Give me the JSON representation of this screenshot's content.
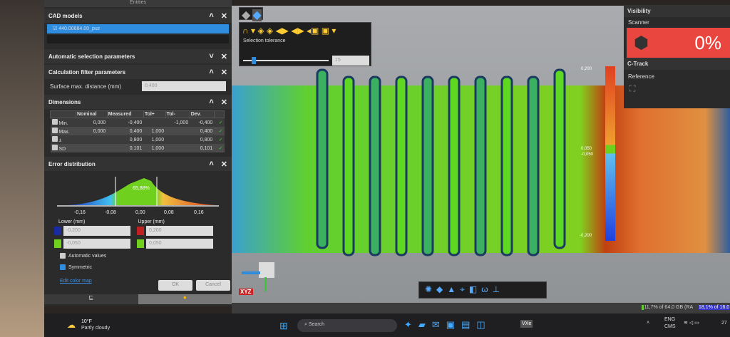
{
  "panel": {
    "tab": "Entities",
    "cad": {
      "title": "CAD models",
      "item": "440.00684.00_puz"
    },
    "auto": {
      "title": "Automatic selection parameters"
    },
    "filter": {
      "title": "Calculation filter parameters",
      "label": "Surface max. distance (mm)",
      "value": "0,400"
    },
    "dims": {
      "title": "Dimensions",
      "headers": [
        "Nominal",
        "Measured",
        "Tol+",
        "Tol-",
        "Dev."
      ],
      "rows": [
        {
          "name": "Min.",
          "nominal": "0,000",
          "measured": "-0,400",
          "tolp": "",
          "tolm": "-1,000",
          "dev": "-0,400"
        },
        {
          "name": "Max.",
          "nominal": "0,000",
          "measured": "0,400",
          "tolp": "1,000",
          "tolm": "",
          "dev": "0,400"
        },
        {
          "name": "±",
          "nominal": "",
          "measured": "0,800",
          "tolp": "1,000",
          "tolm": "",
          "dev": "0,800"
        },
        {
          "name": "SD",
          "nominal": "",
          "measured": "0,101",
          "tolp": "1,000",
          "tolm": "",
          "dev": "0,101"
        }
      ]
    },
    "error": {
      "title": "Error distribution",
      "peak": "65,88%",
      "ticks": [
        "-0,16",
        "-0,08",
        "0,00",
        "0,08",
        "0,16"
      ],
      "lower_label": "Lower (mm)",
      "upper_label": "Upper (mm)",
      "lower1": "-0,200",
      "lower2": "-0,050",
      "upper1": "0,200",
      "upper2": "0,050",
      "auto": "Automatic values",
      "symmetric": "Symmetric",
      "edit": "Edit color map"
    },
    "ok": "OK",
    "cancel": "Cancel"
  },
  "viewport": {
    "selection_tolerance": "Selection tolerance",
    "tolerance_value": "15",
    "tolerance_fraction": 0.1,
    "scale": {
      "max": "0,200",
      "upper": "0,050",
      "lower": "-0,050",
      "min": "-0,200"
    },
    "axis": "XYZ"
  },
  "visibility": {
    "title": "Visibility",
    "scanner": "Scanner",
    "percent": "0%",
    "ctrack": "C-Track",
    "reference": "Reference"
  },
  "status": {
    "ram": "11,7% of 64,0 GB (RA",
    "other": "18,1% of 16,0"
  },
  "taskbar": {
    "temp": "10°F",
    "weather": "Partly cloudy",
    "search": "Search",
    "lang": "ENG",
    "ime": "CMS",
    "time": "27",
    "app": "VXe"
  },
  "colors": {
    "accent": "#2f8de0",
    "red": "#e8463e",
    "green": "#6fd01e"
  }
}
